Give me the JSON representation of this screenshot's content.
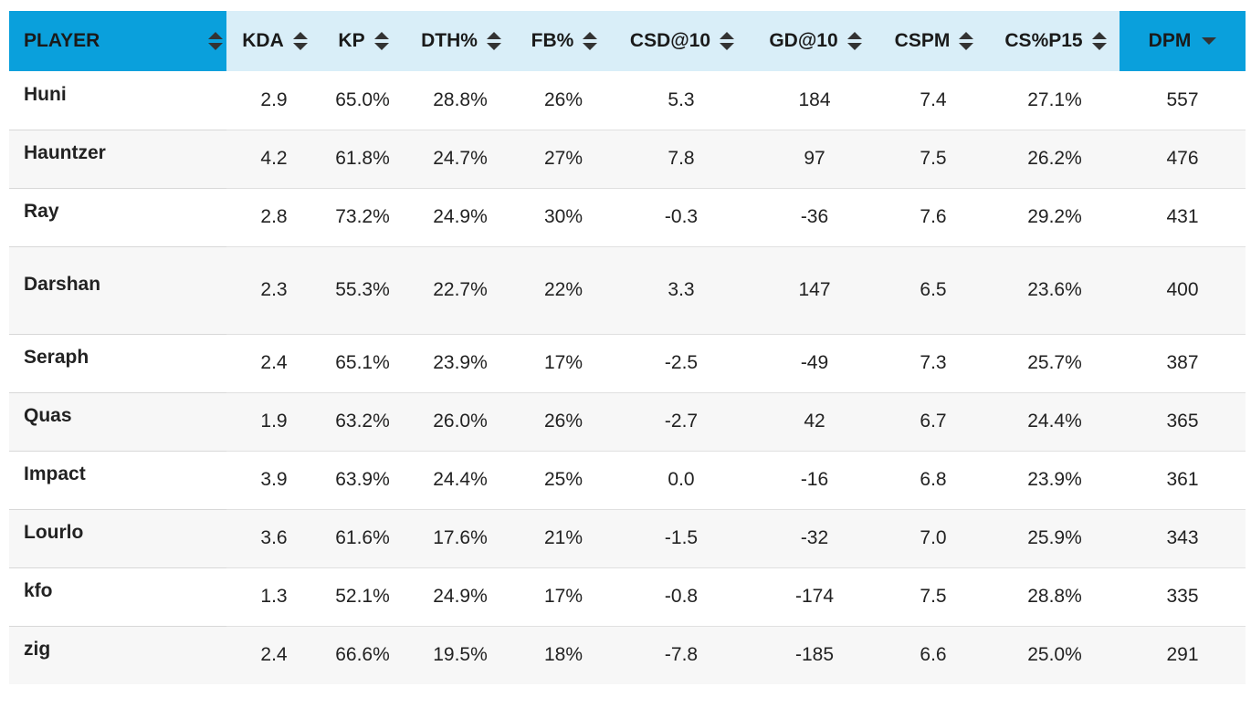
{
  "table": {
    "columns": [
      {
        "label": "PLAYER"
      },
      {
        "label": "KDA"
      },
      {
        "label": "KP"
      },
      {
        "label": "DTH%"
      },
      {
        "label": "FB%"
      },
      {
        "label": "CSD@10"
      },
      {
        "label": "GD@10"
      },
      {
        "label": "CSPM"
      },
      {
        "label": "CS%P15"
      },
      {
        "label": "DPM"
      }
    ],
    "sorted_column": "DPM",
    "sort_direction": "descending",
    "rows": [
      {
        "player": "Huni",
        "cells": [
          "2.9",
          "65.0%",
          "28.8%",
          "26%",
          "5.3",
          "184",
          "7.4",
          "27.1%",
          "557"
        ]
      },
      {
        "player": "Hauntzer",
        "cells": [
          "4.2",
          "61.8%",
          "24.7%",
          "27%",
          "7.8",
          "97",
          "7.5",
          "26.2%",
          "476"
        ]
      },
      {
        "player": "Ray",
        "cells": [
          "2.8",
          "73.2%",
          "24.9%",
          "30%",
          "-0.3",
          "-36",
          "7.6",
          "29.2%",
          "431"
        ]
      },
      {
        "player": "Darshan",
        "cells": [
          "2.3",
          "55.3%",
          "22.7%",
          "22%",
          "3.3",
          "147",
          "6.5",
          "23.6%",
          "400"
        ]
      },
      {
        "player": "Seraph",
        "cells": [
          "2.4",
          "65.1%",
          "23.9%",
          "17%",
          "-2.5",
          "-49",
          "7.3",
          "25.7%",
          "387"
        ]
      },
      {
        "player": "Quas",
        "cells": [
          "1.9",
          "63.2%",
          "26.0%",
          "26%",
          "-2.7",
          "42",
          "6.7",
          "24.4%",
          "365"
        ]
      },
      {
        "player": "Impact",
        "cells": [
          "3.9",
          "63.9%",
          "24.4%",
          "25%",
          "0.0",
          "-16",
          "6.8",
          "23.9%",
          "361"
        ]
      },
      {
        "player": "Lourlo",
        "cells": [
          "3.6",
          "61.6%",
          "17.6%",
          "21%",
          "-1.5",
          "-32",
          "7.0",
          "25.9%",
          "343"
        ]
      },
      {
        "player": "kfo",
        "cells": [
          "1.3",
          "52.1%",
          "24.9%",
          "17%",
          "-0.8",
          "-174",
          "7.5",
          "28.8%",
          "335"
        ]
      },
      {
        "player": "zig",
        "cells": [
          "2.4",
          "66.6%",
          "19.5%",
          "18%",
          "-7.8",
          "-185",
          "6.6",
          "25.0%",
          "291"
        ]
      }
    ]
  },
  "colors": {
    "active_header": "#0aa0dc",
    "header": "#d9eef8",
    "row_alt": "#f7f7f7"
  },
  "icons": {
    "sortable": "sort-both-icon",
    "sorted_desc": "sort-desc-icon"
  }
}
